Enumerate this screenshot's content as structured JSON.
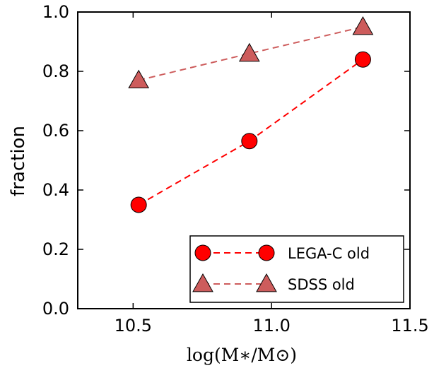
{
  "chart_data": {
    "type": "line",
    "xlabel": "log(M∗/M⊙)",
    "ylabel": "fraction",
    "xlim": [
      10.3,
      11.5
    ],
    "ylim": [
      0.0,
      1.0
    ],
    "xticks": [
      10.5,
      11.0,
      11.5
    ],
    "xtick_labels": [
      "10.5",
      "11.0",
      "11.5"
    ],
    "yticks": [
      0.0,
      0.2,
      0.4,
      0.6,
      0.8,
      1.0
    ],
    "ytick_labels": [
      "0.0",
      "0.2",
      "0.4",
      "0.6",
      "0.8",
      "1.0"
    ],
    "grid": false,
    "legend_position": "lower-right",
    "series": [
      {
        "name": "LEGA-C old",
        "marker": "circle",
        "line": "dashed",
        "color": "#ff0000",
        "marker_edge": "#000000",
        "x": [
          10.52,
          10.92,
          11.33
        ],
        "values": [
          0.35,
          0.565,
          0.84
        ]
      },
      {
        "name": "SDSS old",
        "marker": "triangle",
        "line": "dashed",
        "color": "#cd5c5c",
        "marker_edge": "#000000",
        "x": [
          10.52,
          10.92,
          11.33
        ],
        "values": [
          0.77,
          0.86,
          0.95
        ]
      }
    ]
  }
}
